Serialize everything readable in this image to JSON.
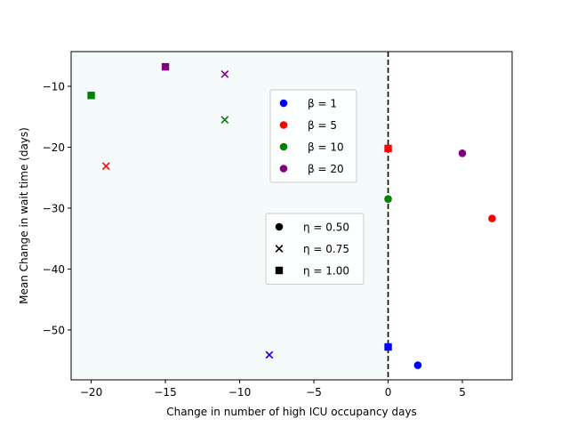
{
  "chart_data": {
    "type": "scatter",
    "title": "",
    "xlabel": "Change in number of high ICU occupancy days",
    "ylabel": "Mean Change in wait time (days)",
    "xlim": [
      -21.35,
      8.35
    ],
    "ylim": [
      -58.2,
      -4.3
    ],
    "xticks": [
      -20,
      -15,
      -10,
      -5,
      0,
      5
    ],
    "xtick_labels": [
      "−20",
      "−15",
      "−10",
      "−5",
      "0",
      "5"
    ],
    "yticks": [
      -50,
      -40,
      -30,
      -20,
      -10
    ],
    "ytick_labels": [
      "−50",
      "−40",
      "−30",
      "−20",
      "−10"
    ],
    "grid": false,
    "shaded_region": {
      "x_from": -21.35,
      "x_to": 0,
      "color": "#f5fafb"
    },
    "vertical_line": {
      "x": 0,
      "style": "dashed",
      "color": "#000000"
    },
    "colors": {
      "1": "#0000ff",
      "5": "#ff0000",
      "10": "#008000",
      "20": "#800080"
    },
    "points": [
      {
        "beta": "1",
        "eta": "0.50",
        "marker": "circle",
        "x": 2,
        "y": -55.8
      },
      {
        "beta": "1",
        "eta": "0.75",
        "marker": "x",
        "x": -8,
        "y": -54.1
      },
      {
        "beta": "1",
        "eta": "1.00",
        "marker": "square",
        "x": 0,
        "y": -52.8
      },
      {
        "beta": "5",
        "eta": "0.50",
        "marker": "circle",
        "x": 7,
        "y": -31.7
      },
      {
        "beta": "5",
        "eta": "0.75",
        "marker": "x",
        "x": -19,
        "y": -23.1
      },
      {
        "beta": "5",
        "eta": "1.00",
        "marker": "square",
        "x": 0,
        "y": -20.2
      },
      {
        "beta": "10",
        "eta": "0.50",
        "marker": "circle",
        "x": 0,
        "y": -28.5
      },
      {
        "beta": "10",
        "eta": "0.75",
        "marker": "x",
        "x": -11,
        "y": -15.5
      },
      {
        "beta": "10",
        "eta": "1.00",
        "marker": "square",
        "x": -20,
        "y": -11.5
      },
      {
        "beta": "20",
        "eta": "0.50",
        "marker": "circle",
        "x": 5,
        "y": -21.0
      },
      {
        "beta": "20",
        "eta": "0.75",
        "marker": "x",
        "x": -11,
        "y": -8.0
      },
      {
        "beta": "20",
        "eta": "1.00",
        "marker": "square",
        "x": -15,
        "y": -6.8
      }
    ],
    "legend_beta": {
      "placement": "center",
      "entries": [
        {
          "label": "β = 1",
          "beta": "1"
        },
        {
          "label": "β = 5",
          "beta": "5"
        },
        {
          "label": "β = 10",
          "beta": "10"
        },
        {
          "label": "β = 20",
          "beta": "20"
        }
      ]
    },
    "legend_eta": {
      "placement": "center",
      "entries": [
        {
          "label": "η = 0.50",
          "marker": "circle"
        },
        {
          "label": "η = 0.75",
          "marker": "x"
        },
        {
          "label": "η = 1.00",
          "marker": "square"
        }
      ]
    }
  }
}
